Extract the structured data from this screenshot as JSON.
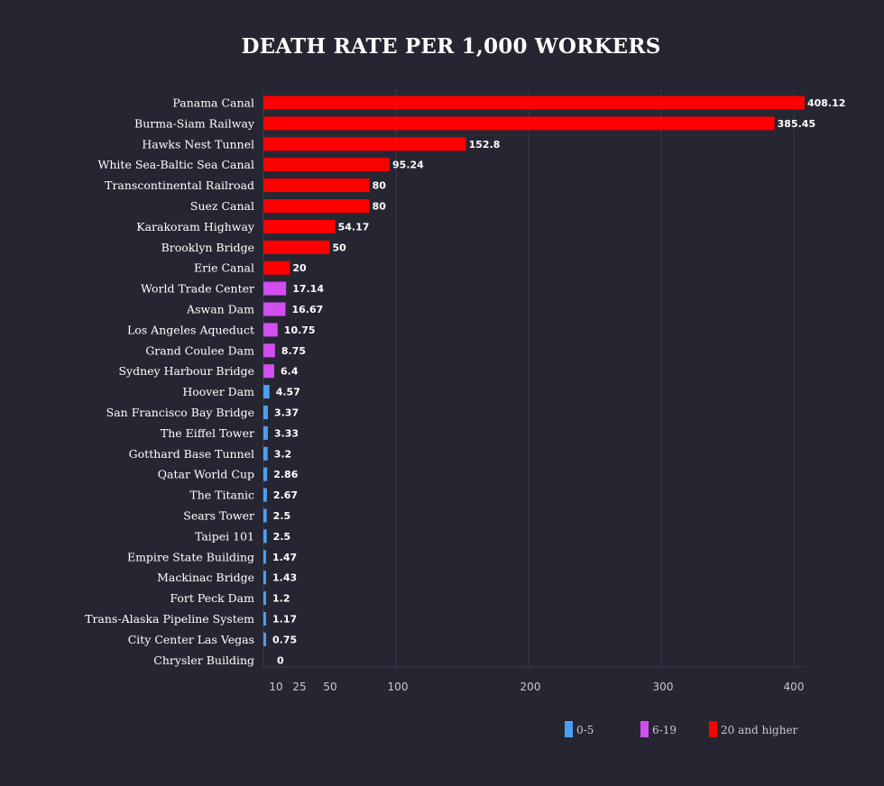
{
  "chart_data": {
    "type": "bar",
    "orientation": "horizontal",
    "title": "DEATH RATE PER 1,000 WORKERS",
    "xlabel": "",
    "ylabel": "",
    "xlim": [
      0,
      410
    ],
    "grid": true,
    "x_ticks": [
      10,
      25,
      50,
      100,
      200,
      300,
      400
    ],
    "categories": [
      "Panama Canal",
      "Burma-Siam Railway",
      "Hawks Nest Tunnel",
      "White Sea-Baltic Sea Canal",
      "Transcontinental Railroad",
      "Suez Canal",
      "Karakoram Highway",
      "Brooklyn Bridge",
      "Erie Canal",
      "World Trade Center",
      "Aswan Dam",
      "Los Angeles Aqueduct",
      "Grand Coulee Dam",
      "Sydney Harbour Bridge",
      "Hoover Dam",
      "San Francisco Bay Bridge",
      "The Eiffel Tower",
      "Gotthard Base Tunnel",
      "Qatar World Cup",
      "The Titanic",
      "Sears Tower",
      "Taipei 101",
      "Empire State Building",
      "Mackinac Bridge",
      "Fort Peck Dam",
      "Trans-Alaska Pipeline System",
      "City Center Las Vegas",
      "Chrysler Building"
    ],
    "values": [
      408.12,
      385.45,
      152.8,
      95.24,
      80,
      80,
      54.17,
      50,
      20,
      17.14,
      16.67,
      10.75,
      8.75,
      6.4,
      4.57,
      3.37,
      3.33,
      3.2,
      2.86,
      2.67,
      2.5,
      2.5,
      1.47,
      1.43,
      1.2,
      1.17,
      0.75,
      0
    ],
    "value_labels": [
      "408.12",
      "385.45",
      "152.8",
      "95.24",
      "80",
      "80",
      "54.17",
      "50",
      "20",
      "17.14",
      "16.67",
      "10.75",
      "8.75",
      "6.4",
      "4.57",
      "3.37",
      "3.33",
      "3.2",
      "2.86",
      "2.67",
      "2.5",
      "2.5",
      "1.47",
      "1.43",
      "1.2",
      "1.17",
      "0.75",
      "0"
    ],
    "legend": {
      "placement": "bottom-right",
      "entries": [
        {
          "label": "0-5",
          "color": "#4a9ff5"
        },
        {
          "label": "6-19",
          "color": "#d24ef0"
        },
        {
          "label": "20 and higher",
          "color": "#ff0000"
        }
      ]
    }
  },
  "colors": {
    "background": "#262633",
    "grid": "#3a3a48",
    "low": "#4a9ff5",
    "mid": "#d24ef0",
    "high": "#ff0000"
  }
}
